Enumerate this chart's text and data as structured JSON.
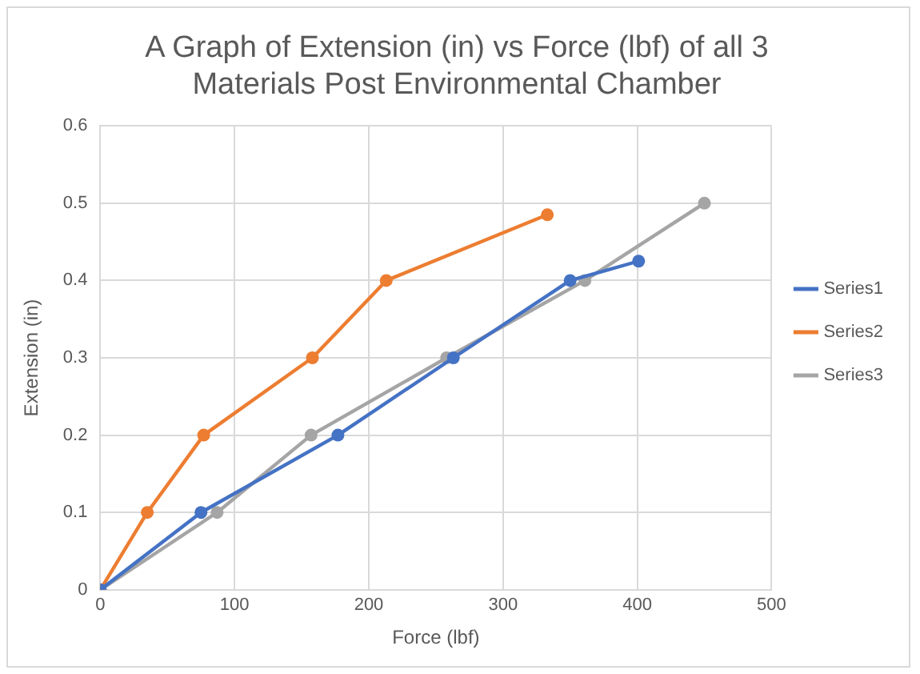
{
  "chart_data": {
    "type": "line",
    "title": [
      "A Graph of Extension (in) vs Force (lbf) of all 3",
      "Materials Post Environmental Chamber"
    ],
    "xlabel": "Force (lbf)",
    "ylabel": "Extension (in)",
    "series": [
      {
        "name": "Series1",
        "color": "#4472c4",
        "x": [
          0,
          75,
          177,
          263,
          350,
          401
        ],
        "values": [
          0,
          0.1,
          0.2,
          0.3,
          0.4,
          0.425
        ]
      },
      {
        "name": "Series2",
        "color": "#ed7d31",
        "x": [
          0,
          35,
          77,
          158,
          213,
          333
        ],
        "values": [
          0,
          0.1,
          0.2,
          0.3,
          0.4,
          0.485
        ]
      },
      {
        "name": "Series3",
        "color": "#a5a5a5",
        "x": [
          0,
          87,
          157,
          258,
          361,
          450
        ],
        "values": [
          0,
          0.1,
          0.2,
          0.3,
          0.4,
          0.5
        ]
      }
    ],
    "xlim": [
      0,
      500
    ],
    "xticks": [
      0,
      100,
      200,
      300,
      400,
      500
    ],
    "ylim": [
      0,
      0.6
    ],
    "yticks": [
      0,
      0.1,
      0.2,
      0.3,
      0.4,
      0.5,
      0.6
    ],
    "grid": true,
    "legend": "right",
    "marker": "circle",
    "line_style": "solid"
  }
}
